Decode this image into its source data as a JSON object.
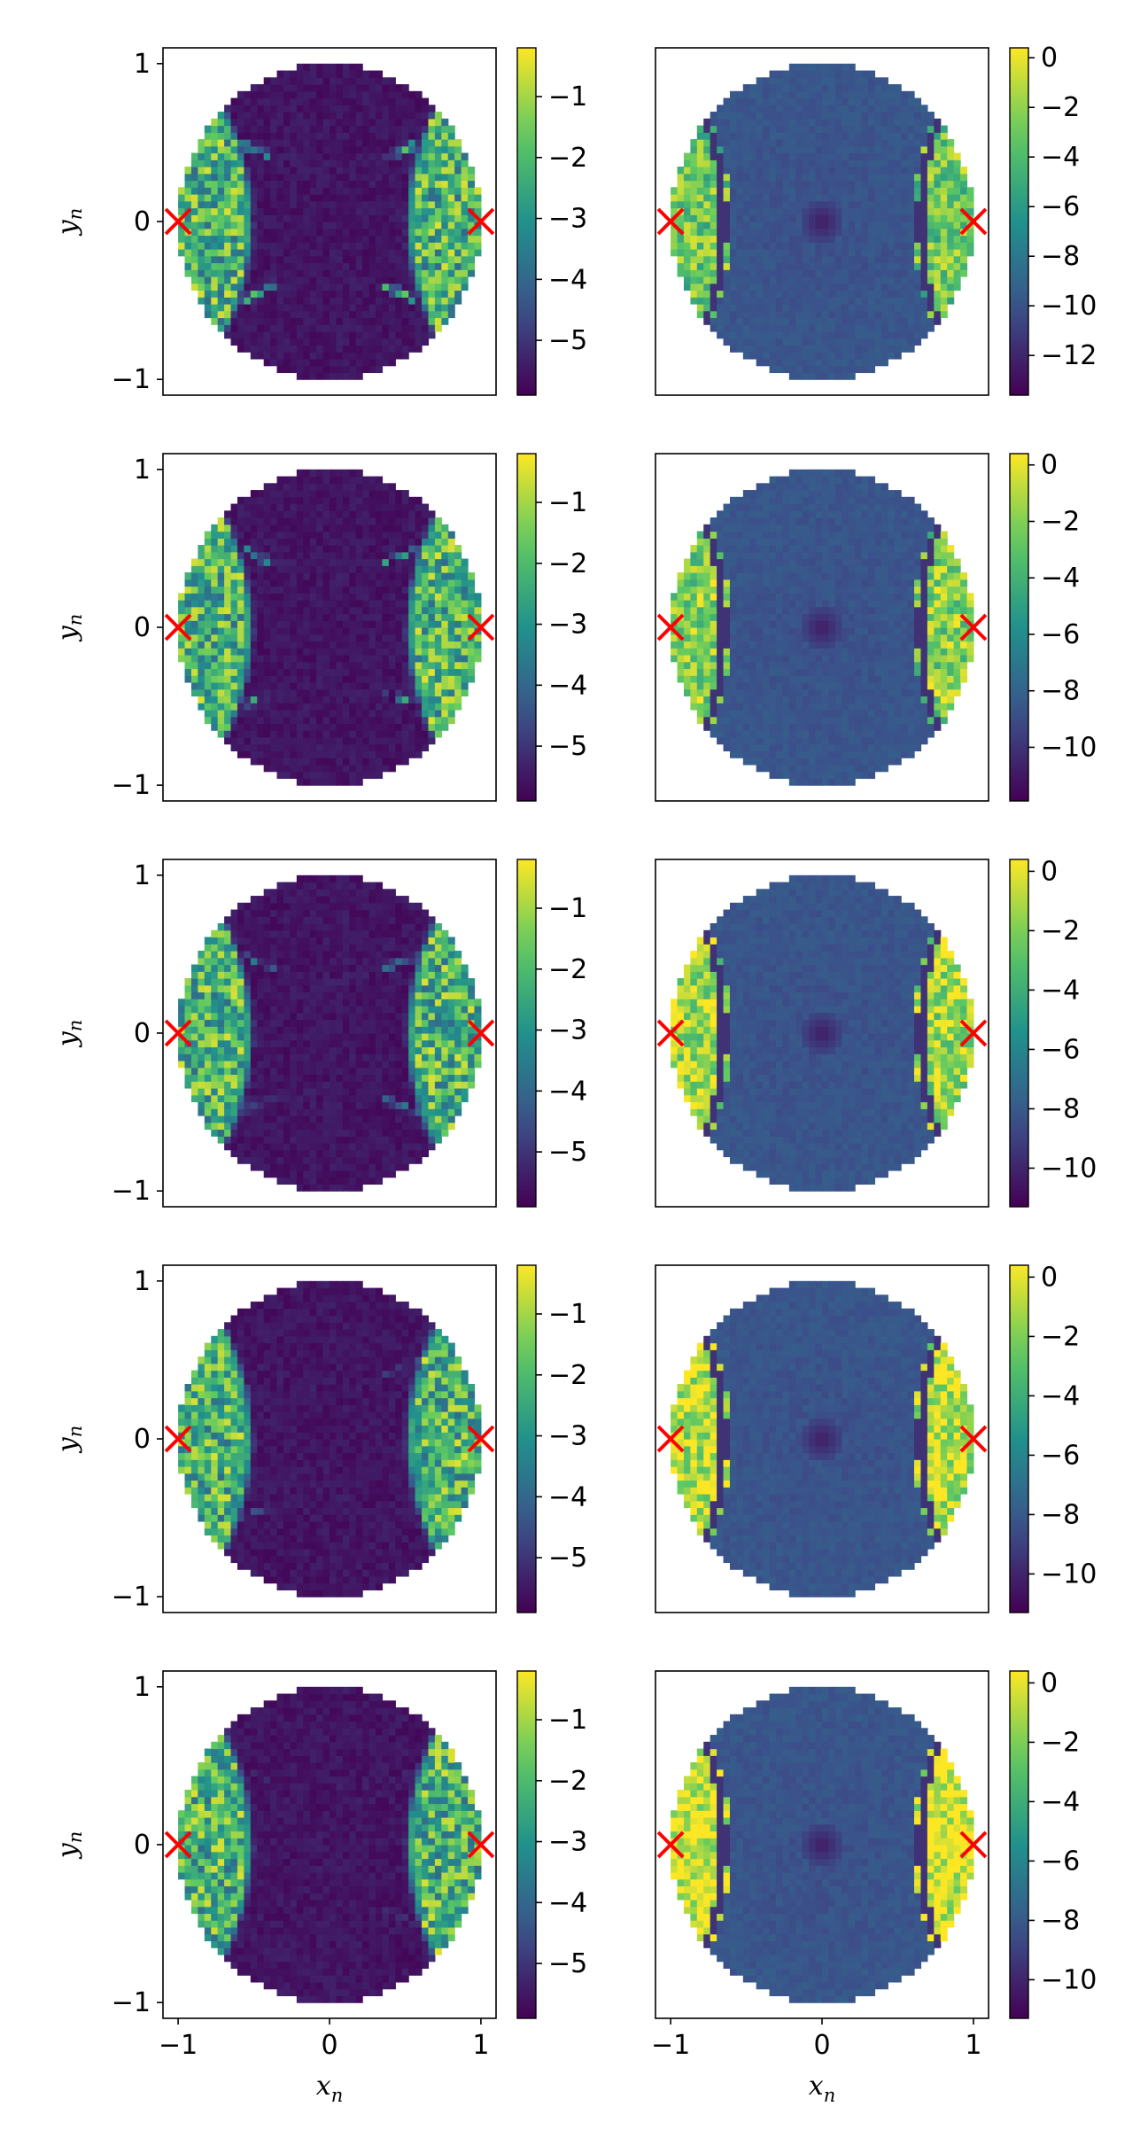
{
  "chart_data": {
    "type": "heatmap",
    "rows": 5,
    "columns": 2,
    "xlabel": "x",
    "xlabel_subscript": "n",
    "ylabel": "y",
    "ylabel_subscript": "n",
    "x_ticks": [
      "−1",
      "0",
      "1"
    ],
    "y_ticks": [
      "1",
      "0",
      "−1"
    ],
    "xlim": [
      -1.1,
      1.1
    ],
    "ylim": [
      -1.1,
      1.1
    ],
    "domain": "unit disk",
    "colormap": "viridis",
    "colormap_stops": [
      "#440154",
      "#3b528b",
      "#21918c",
      "#5ec962",
      "#fde725"
    ],
    "marker": {
      "symbol": "x",
      "color": "#ff0000",
      "points": [
        [
          -1,
          0
        ],
        [
          1,
          0
        ]
      ]
    },
    "panels": [
      {
        "row": 1,
        "col": 1,
        "clim": [
          -5.9,
          -0.2
        ],
        "cbar_ticks": [
          "−1",
          "−2",
          "−3",
          "−4",
          "−5"
        ],
        "cbar_tick_values": [
          -1,
          -2,
          -3,
          -4,
          -5
        ]
      },
      {
        "row": 1,
        "col": 2,
        "clim": [
          -13.6,
          0.4
        ],
        "cbar_ticks": [
          "0",
          "−2",
          "−4",
          "−6",
          "−8",
          "−10",
          "−12"
        ],
        "cbar_tick_values": [
          0,
          -2,
          -4,
          -6,
          -8,
          -10,
          -12
        ]
      },
      {
        "row": 2,
        "col": 1,
        "clim": [
          -5.9,
          -0.2
        ],
        "cbar_ticks": [
          "−1",
          "−2",
          "−3",
          "−4",
          "−5"
        ],
        "cbar_tick_values": [
          -1,
          -2,
          -3,
          -4,
          -5
        ]
      },
      {
        "row": 2,
        "col": 2,
        "clim": [
          -11.9,
          0.4
        ],
        "cbar_ticks": [
          "0",
          "−2",
          "−4",
          "−6",
          "−8",
          "−10"
        ],
        "cbar_tick_values": [
          0,
          -2,
          -4,
          -6,
          -8,
          -10
        ]
      },
      {
        "row": 3,
        "col": 1,
        "clim": [
          -5.9,
          -0.2
        ],
        "cbar_ticks": [
          "−1",
          "−2",
          "−3",
          "−4",
          "−5"
        ],
        "cbar_tick_values": [
          -1,
          -2,
          -3,
          -4,
          -5
        ]
      },
      {
        "row": 3,
        "col": 2,
        "clim": [
          -11.3,
          0.4
        ],
        "cbar_ticks": [
          "0",
          "−2",
          "−4",
          "−6",
          "−8",
          "−10"
        ],
        "cbar_tick_values": [
          0,
          -2,
          -4,
          -6,
          -8,
          -10
        ]
      },
      {
        "row": 4,
        "col": 1,
        "clim": [
          -5.9,
          -0.2
        ],
        "cbar_ticks": [
          "−1",
          "−2",
          "−3",
          "−4",
          "−5"
        ],
        "cbar_tick_values": [
          -1,
          -2,
          -3,
          -4,
          -5
        ]
      },
      {
        "row": 4,
        "col": 2,
        "clim": [
          -11.3,
          0.4
        ],
        "cbar_ticks": [
          "0",
          "−2",
          "−4",
          "−6",
          "−8",
          "−10"
        ],
        "cbar_tick_values": [
          0,
          -2,
          -4,
          -6,
          -8,
          -10
        ]
      },
      {
        "row": 5,
        "col": 1,
        "clim": [
          -5.9,
          -0.2
        ],
        "cbar_ticks": [
          "−1",
          "−2",
          "−3",
          "−4",
          "−5"
        ],
        "cbar_tick_values": [
          -1,
          -2,
          -3,
          -4,
          -5
        ]
      },
      {
        "row": 5,
        "col": 2,
        "clim": [
          -11.3,
          0.4
        ],
        "cbar_ticks": [
          "0",
          "−2",
          "−4",
          "−6",
          "−8",
          "−10"
        ],
        "cbar_tick_values": [
          0,
          -2,
          -4,
          -6,
          -8,
          -10
        ]
      }
    ]
  }
}
